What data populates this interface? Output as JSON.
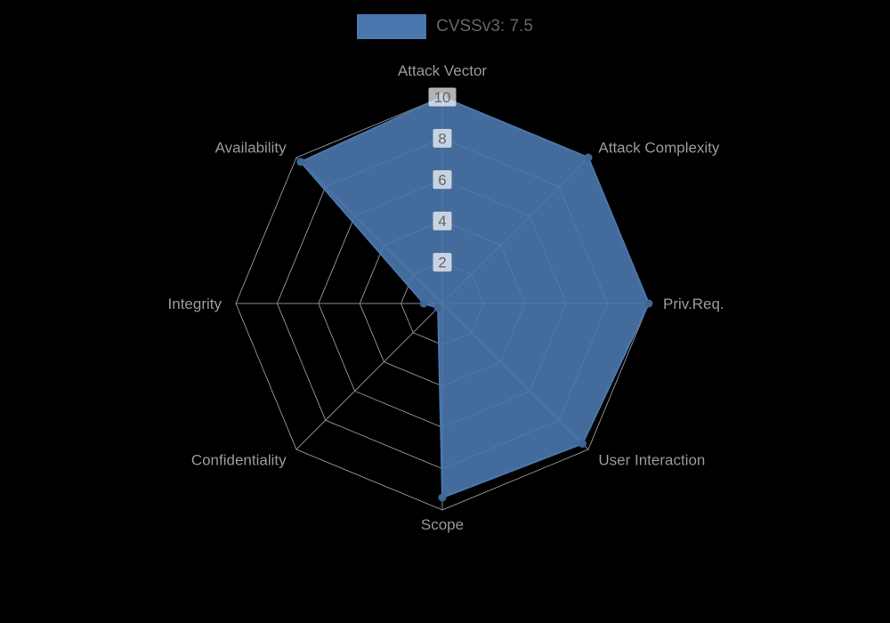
{
  "legend": {
    "label": "CVSSv3: 7.5",
    "swatch_color": "#4a77ad",
    "text_color": "#666666"
  },
  "chart_data": {
    "type": "radar",
    "title": "",
    "categories": [
      "Attack Vector",
      "Attack Complexity",
      "Priv.Req.",
      "User Interaction",
      "Scope",
      "Confidentiality",
      "Integrity",
      "Availability"
    ],
    "series": [
      {
        "name": "CVSSv3: 7.5",
        "values": [
          10,
          10,
          10,
          9.6,
          9.4,
          0.3,
          0.9,
          9.7
        ],
        "color": "#4a77ad",
        "fill_opacity": 0.9,
        "point_color": "#3f6795"
      }
    ],
    "rlim": [
      0,
      10
    ],
    "ticks": [
      2,
      4,
      6,
      8,
      10
    ],
    "grid": true,
    "grid_shape": "polygon",
    "legend_position": "top",
    "style": {
      "background": "#000000",
      "grid_color": "#8a8a8a",
      "axis_label_color": "#999999",
      "tick_color": "#666666",
      "tick_backdrop": "rgba(255,255,255,0.7)"
    }
  }
}
